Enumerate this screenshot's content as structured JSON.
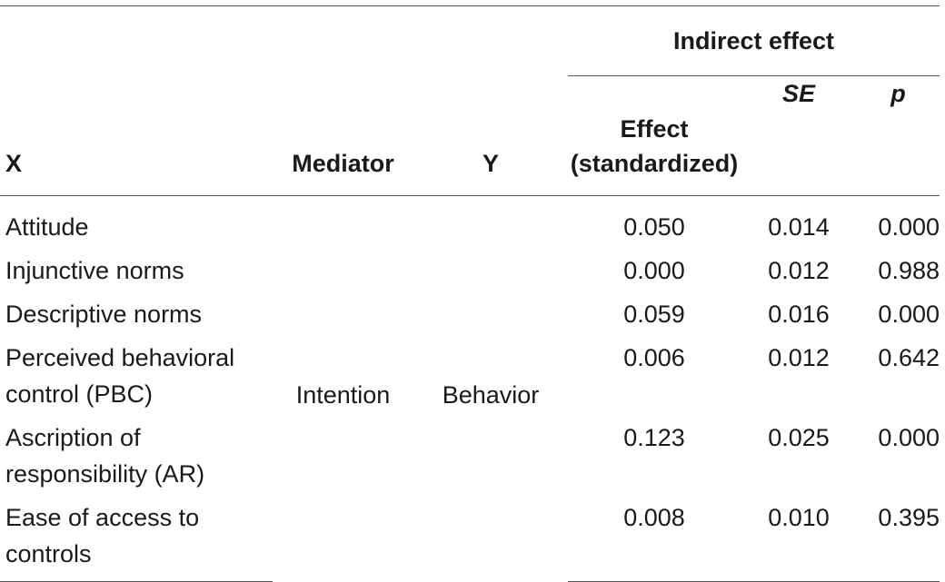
{
  "header": {
    "group_label": "Indirect effect",
    "col_x": "X",
    "col_mediator": "Mediator",
    "col_y": "Y",
    "col_effect_line1": "Effect",
    "col_effect_line2": "(standardized)",
    "col_se": "SE",
    "col_p": "p"
  },
  "mediator": "Intention",
  "outcome": "Behavior",
  "rows": [
    {
      "x_line1": "Attitude",
      "x_line2": "",
      "effect": "0.050",
      "se": "0.014",
      "p": "0.000"
    },
    {
      "x_line1": "Injunctive norms",
      "x_line2": "",
      "effect": "0.000",
      "se": "0.012",
      "p": "0.988"
    },
    {
      "x_line1": "Descriptive norms",
      "x_line2": "",
      "effect": "0.059",
      "se": "0.016",
      "p": "0.000"
    },
    {
      "x_line1": "Perceived behavioral",
      "x_line2": "control (PBC)",
      "effect": "0.006",
      "se": "0.012",
      "p": "0.642"
    },
    {
      "x_line1": "Ascription of",
      "x_line2": "responsibility (AR)",
      "effect": "0.123",
      "se": "0.025",
      "p": "0.000"
    },
    {
      "x_line1": "Ease of access to",
      "x_line2": "controls",
      "effect": "0.008",
      "se": "0.010",
      "p": "0.395"
    }
  ]
}
